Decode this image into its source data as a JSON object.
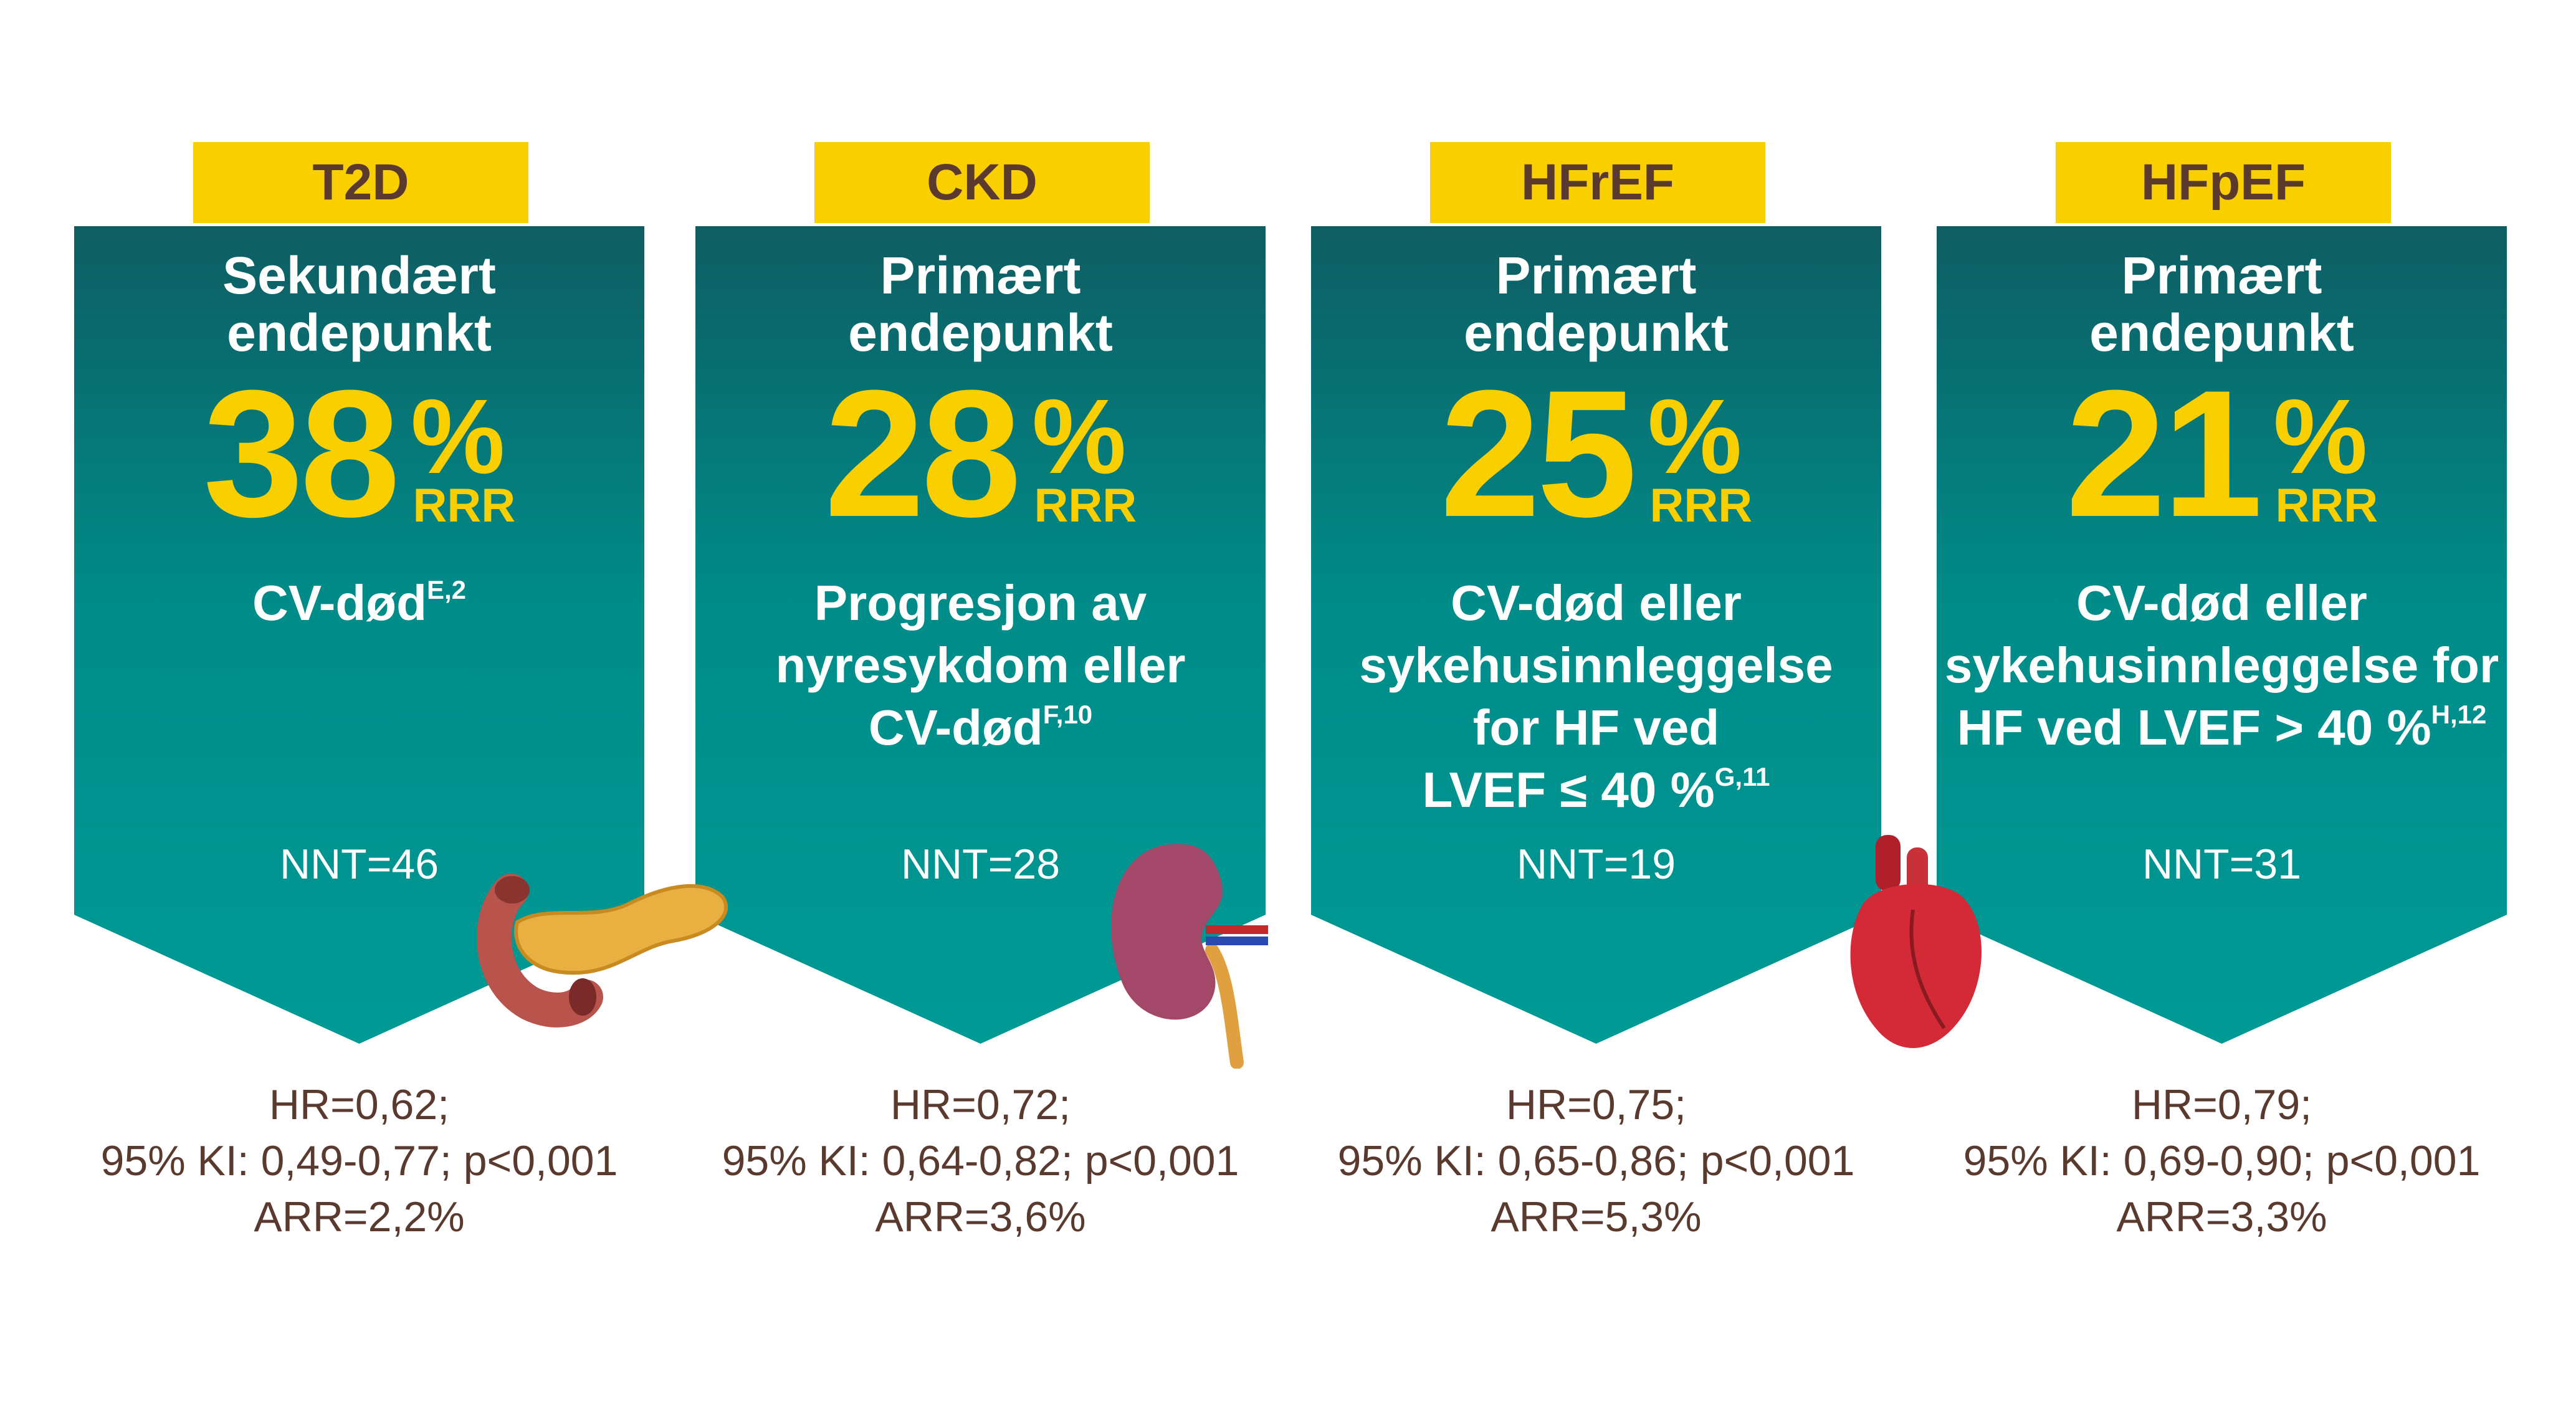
{
  "panels": [
    {
      "tag": "T2D",
      "endpoint": [
        "Sekundært",
        "endepunkt"
      ],
      "value": "38",
      "unit": "%",
      "measure": "RRR",
      "outcome": [
        "CV-død"
      ],
      "superscript": "E,2",
      "nnt": "NNT=46",
      "stats": [
        "HR=0,62;",
        "95% KI: 0,49-0,77; p<0,001",
        "ARR=2,2%"
      ]
    },
    {
      "tag": "CKD",
      "endpoint": [
        "Primært",
        "endepunkt"
      ],
      "value": "28",
      "unit": "%",
      "measure": "RRR",
      "outcome": [
        "Progresjon av",
        "nyresykdom eller",
        "CV-død"
      ],
      "superscript": "F,10",
      "nnt": "NNT=28",
      "stats": [
        "HR=0,72;",
        "95% KI: 0,64-0,82; p<0,001",
        "ARR=3,6%"
      ]
    },
    {
      "tag": "HFrEF",
      "endpoint": [
        "Primært",
        "endepunkt"
      ],
      "value": "25",
      "unit": "%",
      "measure": "RRR",
      "outcome": [
        "CV-død eller",
        "sykehusinnleggelse",
        "for HF ved",
        "LVEF ≤ 40 %"
      ],
      "superscript": "G,11",
      "nnt": "NNT=19",
      "stats": [
        "HR=0,75;",
        "95% KI: 0,65-0,86; p<0,001",
        "ARR=5,3%"
      ]
    },
    {
      "tag": "HFpEF",
      "endpoint": [
        "Primært",
        "endepunkt"
      ],
      "value": "21",
      "unit": "%",
      "measure": "RRR",
      "outcome": [
        "CV-død eller",
        "sykehusinnleggelse for",
        "HF ved LVEF > 40 %"
      ],
      "superscript": "H,12",
      "nnt": "NNT=31",
      "stats": [
        "HR=0,79;",
        "95% KI: 0,69-0,90; p<0,001",
        "ARR=3,3%"
      ]
    }
  ]
}
